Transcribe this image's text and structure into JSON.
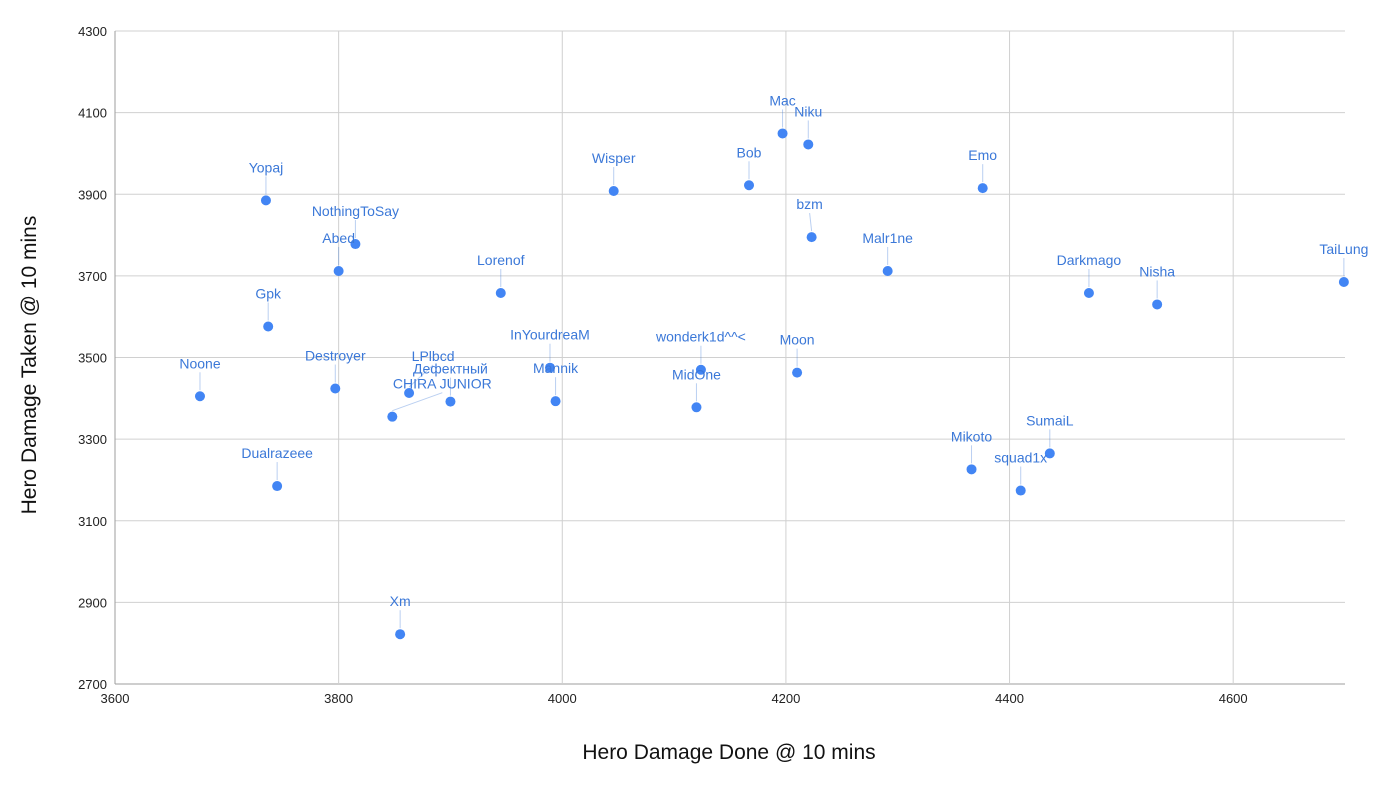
{
  "chart_data": {
    "type": "scatter",
    "title": "",
    "xlabel": "Hero Damage Done @ 10 mins",
    "ylabel": "Hero Damage Taken @ 10 mins",
    "xlim": [
      3600,
      4700
    ],
    "ylim": [
      2700,
      4300
    ],
    "xticks": [
      3600,
      3800,
      4000,
      4200,
      4400,
      4600
    ],
    "yticks": [
      2700,
      2900,
      3100,
      3300,
      3500,
      3700,
      3900,
      4100,
      4300
    ],
    "grid": true,
    "legend": "none",
    "color": "#4285f4",
    "label_color": "#3b78d8",
    "points": [
      {
        "name": "Yopaj",
        "x": 3735,
        "y": 3885
      },
      {
        "name": "NothingToSay",
        "x": 3815,
        "y": 3778
      },
      {
        "name": "Abed",
        "x": 3800,
        "y": 3712
      },
      {
        "name": "Gpk",
        "x": 3737,
        "y": 3576
      },
      {
        "name": "Noone",
        "x": 3676,
        "y": 3405
      },
      {
        "name": "Destroyer",
        "x": 3797,
        "y": 3424
      },
      {
        "name": "CHIRA JUNIOR",
        "x": 3848,
        "y": 3355
      },
      {
        "name": "LPlbcd",
        "x": 3863,
        "y": 3413
      },
      {
        "name": "Дефектный",
        "x": 3900,
        "y": 3392
      },
      {
        "name": "Dualrazeee",
        "x": 3745,
        "y": 3185
      },
      {
        "name": "Xm",
        "x": 3855,
        "y": 2822
      },
      {
        "name": "Lorenof",
        "x": 3945,
        "y": 3658
      },
      {
        "name": "InYourdreaM",
        "x": 3989,
        "y": 3475
      },
      {
        "name": "Mannik",
        "x": 3994,
        "y": 3393
      },
      {
        "name": "Wisper",
        "x": 4046,
        "y": 3908
      },
      {
        "name": "wonderk1d^^<",
        "x": 4124,
        "y": 3470
      },
      {
        "name": "MidOne",
        "x": 4120,
        "y": 3378
      },
      {
        "name": "Bob",
        "x": 4167,
        "y": 3922
      },
      {
        "name": "Mac",
        "x": 4197,
        "y": 4049
      },
      {
        "name": "Niku",
        "x": 4220,
        "y": 4022
      },
      {
        "name": "bzm",
        "x": 4223,
        "y": 3795
      },
      {
        "name": "Moon",
        "x": 4210,
        "y": 3463
      },
      {
        "name": "Malr1ne",
        "x": 4291,
        "y": 3712
      },
      {
        "name": "Emo",
        "x": 4376,
        "y": 3915
      },
      {
        "name": "Mikoto",
        "x": 4366,
        "y": 3226
      },
      {
        "name": "squad1x",
        "x": 4410,
        "y": 3174
      },
      {
        "name": "SumaiL",
        "x": 4436,
        "y": 3265
      },
      {
        "name": "Darkmago",
        "x": 4471,
        "y": 3658
      },
      {
        "name": "Nisha",
        "x": 4532,
        "y": 3630
      },
      {
        "name": "TaiLung",
        "x": 4699,
        "y": 3685
      }
    ]
  }
}
